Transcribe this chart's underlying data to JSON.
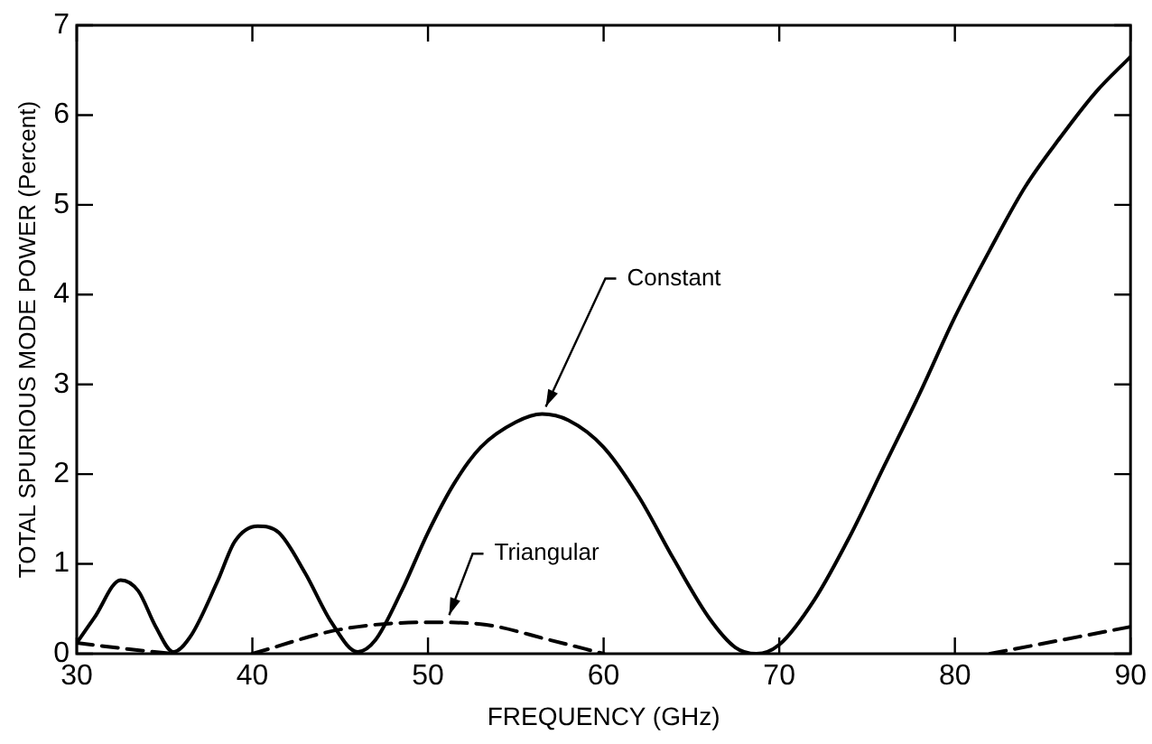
{
  "chart_data": {
    "type": "line",
    "xlabel": "FREQUENCY (GHz)",
    "ylabel": "TOTAL SPURIOUS MODE POWER (Percent)",
    "xlim": [
      30,
      90
    ],
    "xticks": [
      30,
      40,
      50,
      60,
      70,
      80,
      90
    ],
    "ylim": [
      0,
      7
    ],
    "yticks": [
      0,
      1,
      2,
      3,
      4,
      5,
      6,
      7
    ],
    "grid": false,
    "legend": false,
    "marker": "none",
    "series": [
      {
        "color": "#000000",
        "line_style": "solid",
        "x": [
          30,
          31,
          32.5,
          33.5,
          34.5,
          35.5,
          36.5,
          38,
          39,
          40.3,
          41.5,
          43,
          44.5,
          46,
          47,
          48.5,
          50,
          51.5,
          53,
          55,
          56.5,
          58,
          60,
          62,
          64,
          66,
          67.5,
          68.7,
          70,
          72,
          74,
          76,
          78,
          80,
          82,
          84,
          86,
          88,
          90
        ],
        "values": [
          0.12,
          0.4,
          0.82,
          0.7,
          0.3,
          0.02,
          0.2,
          0.8,
          1.25,
          1.42,
          1.35,
          0.9,
          0.35,
          0.02,
          0.15,
          0.7,
          1.35,
          1.9,
          2.3,
          2.58,
          2.67,
          2.6,
          2.3,
          1.75,
          1.05,
          0.4,
          0.07,
          0,
          0.1,
          0.6,
          1.3,
          2.1,
          2.9,
          3.75,
          4.5,
          5.2,
          5.75,
          6.25,
          6.65
        ]
      },
      {
        "color": "#000000",
        "line_style": "dashed",
        "x": [
          30,
          33,
          35.5,
          38,
          40,
          45,
          50,
          53,
          57,
          60,
          70,
          82,
          86,
          90
        ],
        "values": [
          0.12,
          0.05,
          0,
          null,
          0,
          0.27,
          0.35,
          0.33,
          0.15,
          0,
          null,
          0,
          0.15,
          0.3
        ]
      }
    ],
    "annotations": [
      {
        "text": "Constant",
        "x": 56.5,
        "y": 2.67
      },
      {
        "text": "Triangular",
        "x": 51,
        "y": 0.35
      }
    ]
  }
}
